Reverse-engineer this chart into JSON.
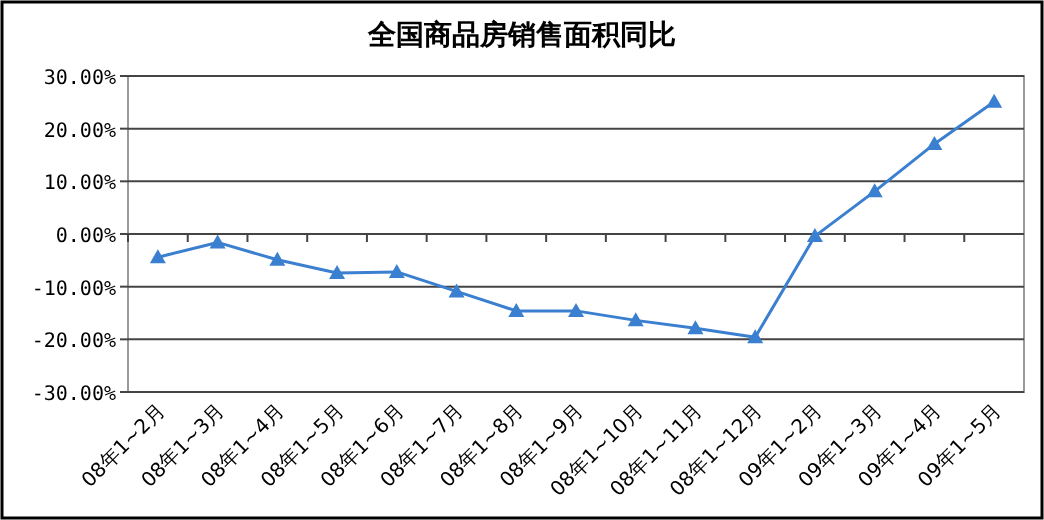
{
  "chart_data": {
    "type": "line",
    "title": "全国商品房销售面积同比",
    "categories": [
      "08年1~2月",
      "08年1~3月",
      "08年1~4月",
      "08年1~5月",
      "08年1~6月",
      "08年1~7月",
      "08年1~8月",
      "08年1~9月",
      "08年1~10月",
      "08年1~11月",
      "08年1~12月",
      "09年1~2月",
      "09年1~3月",
      "09年1~4月",
      "09年1~5月"
    ],
    "series": [
      {
        "color": "#3a7fd0",
        "values": [
          -4.4,
          -1.6,
          -4.9,
          -7.4,
          -7.2,
          -10.9,
          -14.6,
          -14.6,
          -16.4,
          -17.9,
          -19.6,
          -0.4,
          8.1,
          17.1,
          25.1
        ]
      }
    ],
    "ylim": [
      -30,
      30
    ],
    "yticks": [
      {
        "value": 30,
        "label": "30.00%"
      },
      {
        "value": 20,
        "label": "20.00%"
      },
      {
        "value": 10,
        "label": "10.00%"
      },
      {
        "value": 0,
        "label": "0.00%"
      },
      {
        "value": -10,
        "label": "-10.00%"
      },
      {
        "value": -20,
        "label": "-20.00%"
      },
      {
        "value": -30,
        "label": "-30.00%"
      }
    ],
    "grid": "y",
    "marker": "triangle"
  }
}
